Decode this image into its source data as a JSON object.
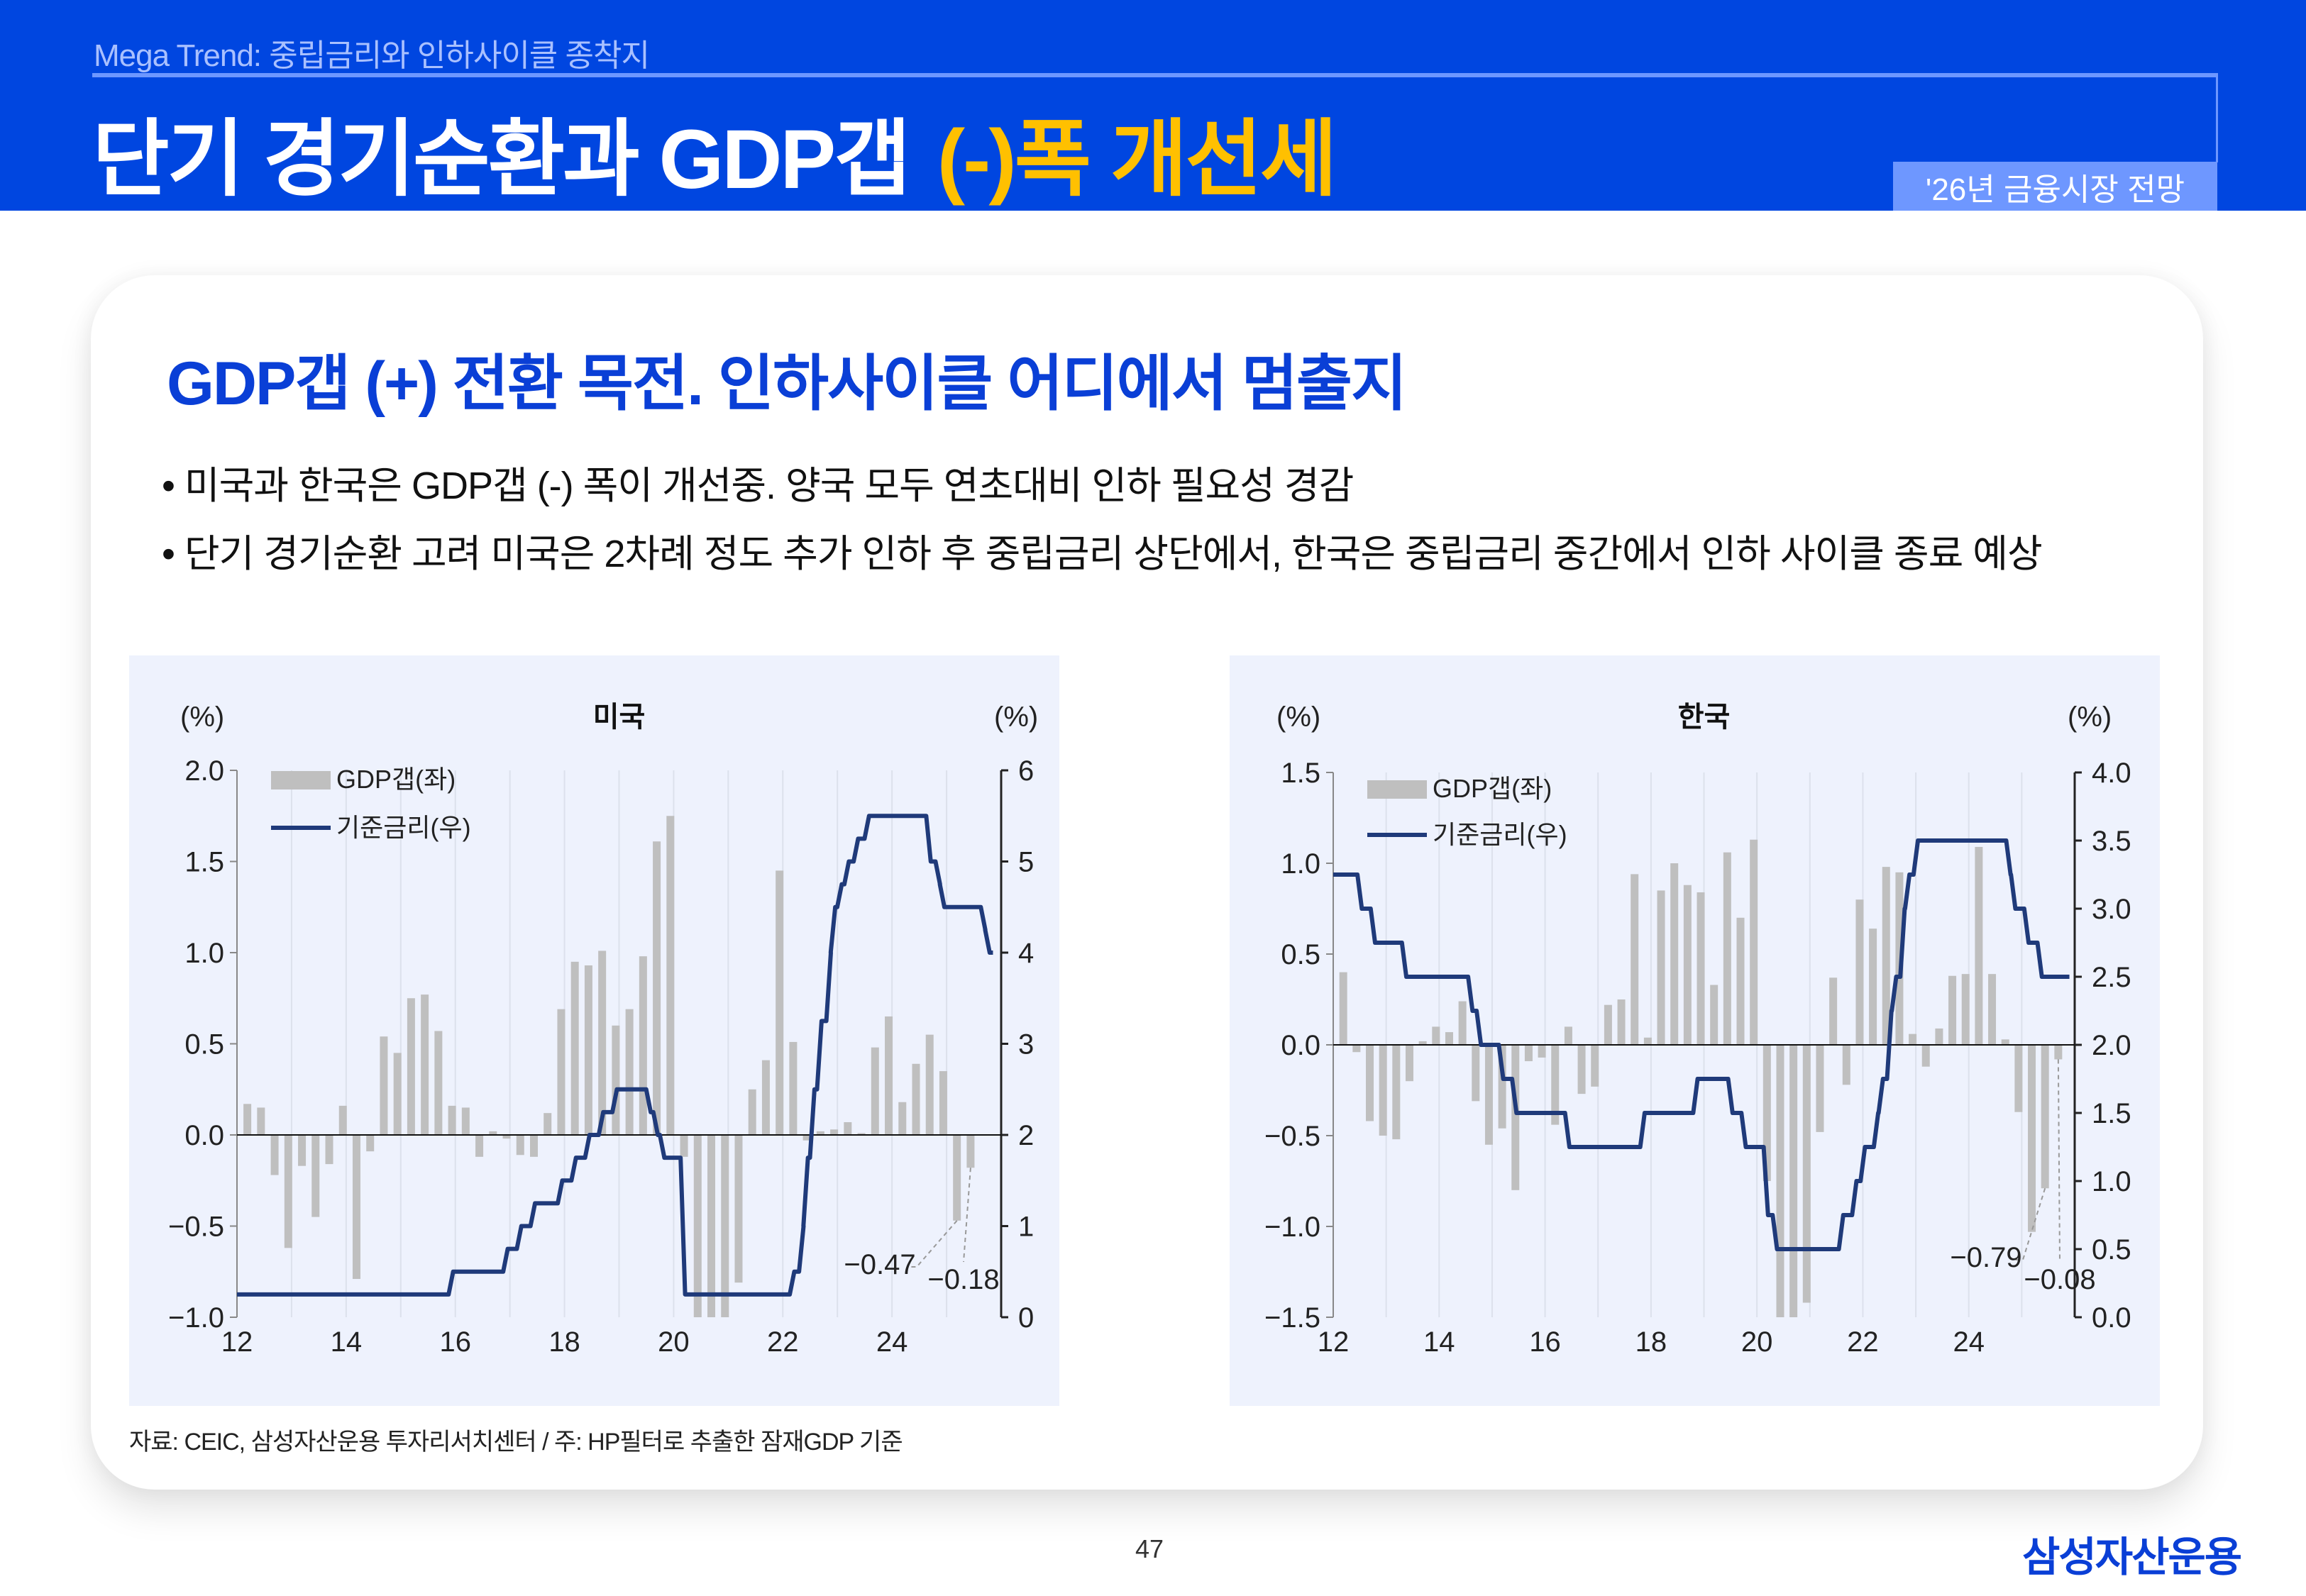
{
  "header": {
    "kicker": "Mega Trend: 중립금리와 인하사이클 종착지",
    "title_main": "단기 경기순환과 GDP갭",
    "title_highlight": "(-)폭 개선세",
    "tag": "'26년 금융시장 전망",
    "colors": {
      "background": "#0046E0",
      "highlight": "#FFC000",
      "accent_line": "#6E97FF"
    }
  },
  "card": {
    "heading": "GDP갭 (+) 전환 목전. 인하사이클 어디에서 멈출지",
    "bullets": [
      "• 미국과 한국은 GDP갭 (-) 폭이 개선중. 양국 모두 연초대비 인하 필요성 경감",
      "• 단기 경기순환 고려 미국은 2차례 정도 추가 인하 후 중립금리 상단에서, 한국은 중립금리 중간에서 인하 사이클 종료 예상"
    ],
    "source": "자료: CEIC, 삼성자산운용 투자리서치센터 / 주: HP필터로 추출한 잠재GDP 기준"
  },
  "footer": {
    "page_number": "47",
    "logo": "삼성자산운용"
  },
  "chart_data": [
    {
      "type": "bar+line",
      "title": "미국",
      "left_unit": "(%)",
      "right_unit": "(%)",
      "legend": [
        "GDP갭(좌)",
        "기준금리(우)"
      ],
      "legend_placement": "top-left",
      "x_ticks": [
        "12",
        "14",
        "16",
        "18",
        "20",
        "22",
        "24"
      ],
      "x_range": [
        2012,
        2026
      ],
      "left_ylim": [
        -1.0,
        2.0
      ],
      "left_ticks": [
        "2.0",
        "1.5",
        "1.0",
        "0.5",
        "0.0",
        "-0.5",
        "-1.0"
      ],
      "right_ylim": [
        0,
        6
      ],
      "right_ticks": [
        "6",
        "5",
        "4",
        "3",
        "2",
        "1",
        "0"
      ],
      "gdp_gap_start": "2012Q1",
      "gdp_gap": [
        0.17,
        0.15,
        -0.22,
        -0.62,
        -0.17,
        -0.45,
        -0.16,
        0.16,
        -0.79,
        -0.09,
        0.54,
        0.45,
        0.75,
        0.77,
        0.57,
        0.16,
        0.15,
        -0.12,
        0.02,
        -0.02,
        -0.11,
        -0.12,
        0.12,
        0.69,
        0.95,
        0.93,
        1.01,
        0.6,
        0.69,
        0.98,
        1.61,
        1.75,
        -0.12,
        -1.0,
        -1.0,
        -1.0,
        -0.81,
        0.25,
        0.41,
        1.45,
        0.51,
        -0.03,
        0.02,
        0.03,
        0.07,
        0.01,
        0.48,
        0.65,
        0.18,
        0.39,
        0.55,
        0.35,
        -0.47,
        -0.18
      ],
      "policy_rate_steps": [
        [
          2012.0,
          0.25
        ],
        [
          2015.96,
          0.5
        ],
        [
          2016.96,
          0.75
        ],
        [
          2017.21,
          1.0
        ],
        [
          2017.46,
          1.25
        ],
        [
          2017.96,
          1.5
        ],
        [
          2018.21,
          1.75
        ],
        [
          2018.46,
          2.0
        ],
        [
          2018.71,
          2.25
        ],
        [
          2018.96,
          2.5
        ],
        [
          2019.58,
          2.25
        ],
        [
          2019.71,
          2.0
        ],
        [
          2019.83,
          1.75
        ],
        [
          2020.21,
          0.25
        ],
        [
          2022.21,
          0.5
        ],
        [
          2022.38,
          1.0
        ],
        [
          2022.46,
          1.75
        ],
        [
          2022.58,
          2.5
        ],
        [
          2022.71,
          3.25
        ],
        [
          2022.88,
          4.0
        ],
        [
          2022.96,
          4.5
        ],
        [
          2023.08,
          4.75
        ],
        [
          2023.21,
          5.0
        ],
        [
          2023.38,
          5.25
        ],
        [
          2023.58,
          5.5
        ],
        [
          2024.71,
          5.0
        ],
        [
          2024.88,
          4.75
        ],
        [
          2024.96,
          4.5
        ],
        [
          2025.71,
          4.25
        ],
        [
          2025.79,
          4.0
        ]
      ],
      "policy_rate_end": 2025.85,
      "annotations": [
        {
          "label": "-0.47",
          "bar_index": 52
        },
        {
          "label": "-0.18",
          "bar_index": 53
        }
      ],
      "colors": {
        "bar": "#BFBFBF",
        "line": "#1F3A7A",
        "panel": "#EEF2FD"
      }
    },
    {
      "type": "bar+line",
      "title": "한국",
      "left_unit": "(%)",
      "right_unit": "(%)",
      "legend": [
        "GDP갭(좌)",
        "기준금리(우)"
      ],
      "legend_placement": "top-left",
      "x_ticks": [
        "12",
        "14",
        "16",
        "18",
        "20",
        "22",
        "24"
      ],
      "x_range": [
        2012,
        2026
      ],
      "left_ylim": [
        -1.5,
        1.5
      ],
      "left_ticks": [
        "1.5",
        "1.0",
        "0.5",
        "0.0",
        "-0.5",
        "-1.0",
        "-1.5"
      ],
      "right_ylim": [
        0,
        4
      ],
      "right_ticks": [
        "4.0",
        "3.5",
        "3.0",
        "2.5",
        "2.0",
        "1.5",
        "1.0",
        "0.5",
        "0.0"
      ],
      "gdp_gap_start": "2012Q1",
      "gdp_gap": [
        0.4,
        -0.04,
        -0.42,
        -0.5,
        -0.52,
        -0.2,
        0.02,
        0.1,
        0.07,
        0.24,
        -0.31,
        -0.55,
        -0.46,
        -0.8,
        -0.09,
        -0.07,
        -0.44,
        0.1,
        -0.27,
        -0.23,
        0.22,
        0.25,
        0.94,
        0.04,
        0.85,
        1.0,
        0.88,
        0.84,
        0.33,
        1.06,
        0.7,
        1.13,
        -0.75,
        -1.5,
        -1.5,
        -1.42,
        -0.48,
        0.37,
        -0.22,
        0.8,
        0.64,
        0.98,
        0.95,
        0.06,
        -0.12,
        0.09,
        0.38,
        0.39,
        1.09,
        0.39,
        0.03,
        -0.37,
        -1.03,
        -0.79,
        -0.08
      ],
      "policy_rate_steps": [
        [
          2012.0,
          3.25
        ],
        [
          2012.54,
          3.0
        ],
        [
          2012.79,
          2.75
        ],
        [
          2013.38,
          2.5
        ],
        [
          2014.63,
          2.25
        ],
        [
          2014.79,
          2.0
        ],
        [
          2015.21,
          1.75
        ],
        [
          2015.46,
          1.5
        ],
        [
          2016.46,
          1.25
        ],
        [
          2017.88,
          1.5
        ],
        [
          2018.88,
          1.75
        ],
        [
          2019.54,
          1.5
        ],
        [
          2019.79,
          1.25
        ],
        [
          2020.21,
          0.75
        ],
        [
          2020.38,
          0.5
        ],
        [
          2021.63,
          0.75
        ],
        [
          2021.88,
          1.0
        ],
        [
          2022.04,
          1.25
        ],
        [
          2022.29,
          1.5
        ],
        [
          2022.38,
          1.75
        ],
        [
          2022.54,
          2.25
        ],
        [
          2022.63,
          2.5
        ],
        [
          2022.79,
          3.0
        ],
        [
          2022.88,
          3.25
        ],
        [
          2023.04,
          3.5
        ],
        [
          2024.79,
          3.25
        ],
        [
          2024.88,
          3.0
        ],
        [
          2025.13,
          2.75
        ],
        [
          2025.38,
          2.5
        ]
      ],
      "policy_rate_end": 2025.9,
      "annotations": [
        {
          "label": "-0.79",
          "bar_index": 53
        },
        {
          "label": "-0.08",
          "bar_index": 54
        }
      ],
      "colors": {
        "bar": "#BFBFBF",
        "line": "#1F3A7A",
        "panel": "#EEF2FD"
      }
    }
  ]
}
